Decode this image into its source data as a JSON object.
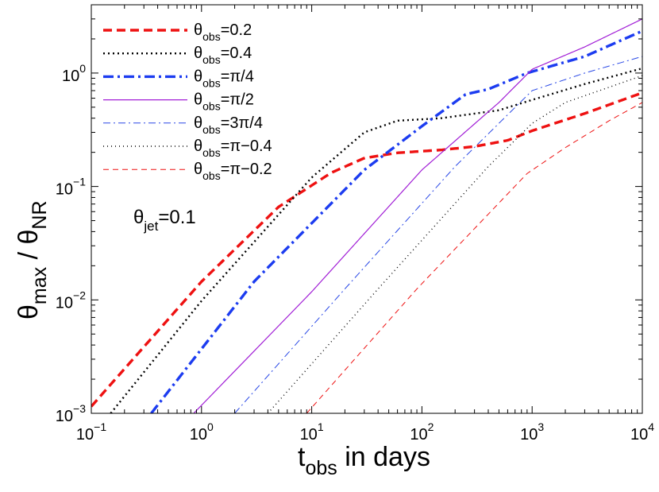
{
  "chart_data": {
    "type": "line",
    "scale": {
      "x": "log",
      "y": "log"
    },
    "xlim": [
      0.1,
      10000
    ],
    "ylim": [
      0.001,
      4
    ],
    "x_ticks": [
      {
        "value": 0.1,
        "base": "10",
        "exp": "−1"
      },
      {
        "value": 1,
        "base": "10",
        "exp": "0"
      },
      {
        "value": 10,
        "base": "10",
        "exp": "1"
      },
      {
        "value": 100,
        "base": "10",
        "exp": "2"
      },
      {
        "value": 1000,
        "base": "10",
        "exp": "3"
      },
      {
        "value": 10000,
        "base": "10",
        "exp": "4"
      }
    ],
    "y_ticks": [
      {
        "value": 0.001,
        "base": "10",
        "exp": "−3"
      },
      {
        "value": 0.01,
        "base": "10",
        "exp": "−2"
      },
      {
        "value": 0.1,
        "base": "10",
        "exp": "−1"
      },
      {
        "value": 1,
        "base": "10",
        "exp": "0"
      }
    ],
    "xlabel": {
      "main": "t",
      "sub": "obs",
      "rest": " in days"
    },
    "ylabel": {
      "main1": "θ",
      "sub1": "max",
      "sep": " / ",
      "main2": "θ",
      "sub2": "NR"
    },
    "annotation": {
      "main": "θ",
      "sub": "jet",
      "rest": "=0.1"
    },
    "legend_position": "top-left",
    "series": [
      {
        "id": "s1",
        "name_main": "θ",
        "name_sub": "obs",
        "name_rest": "=0.2",
        "color": "#ee1111",
        "width": 3.4,
        "dash": "11 6",
        "points": [
          [
            0.1,
            0.00115
          ],
          [
            1,
            0.0145
          ],
          [
            5,
            0.066
          ],
          [
            15,
            0.132
          ],
          [
            30,
            0.178
          ],
          [
            60,
            0.198
          ],
          [
            150,
            0.21
          ],
          [
            300,
            0.225
          ],
          [
            600,
            0.255
          ],
          [
            1000,
            0.31
          ],
          [
            3000,
            0.44
          ],
          [
            10000,
            0.67
          ]
        ]
      },
      {
        "id": "s2",
        "name_main": "θ",
        "name_sub": "obs",
        "name_rest": "=0.4",
        "color": "#000000",
        "width": 2.4,
        "dash": "2 4",
        "points": [
          [
            0.15,
            0.001
          ],
          [
            1,
            0.0098
          ],
          [
            10,
            0.12
          ],
          [
            30,
            0.3
          ],
          [
            60,
            0.38
          ],
          [
            150,
            0.4
          ],
          [
            500,
            0.47
          ],
          [
            1000,
            0.58
          ],
          [
            3000,
            0.8
          ],
          [
            10000,
            1.1
          ]
        ]
      },
      {
        "id": "s3",
        "name_main": "θ",
        "name_sub": "obs",
        "name_rest": "=π/4",
        "color": "#1c3cf0",
        "width": 3.4,
        "dash": "13 5 3 5",
        "points": [
          [
            0.35,
            0.001
          ],
          [
            3,
            0.0145
          ],
          [
            30,
            0.14
          ],
          [
            100,
            0.34
          ],
          [
            250,
            0.65
          ],
          [
            400,
            0.72
          ],
          [
            900,
            1.0
          ],
          [
            3000,
            1.4
          ],
          [
            10000,
            2.35
          ]
        ]
      },
      {
        "id": "s4",
        "name_main": "θ",
        "name_sub": "obs",
        "name_rest": "=π/2",
        "color": "#a11ed6",
        "width": 1.2,
        "dash": "",
        "points": [
          [
            0.85,
            0.001
          ],
          [
            10,
            0.0118
          ],
          [
            100,
            0.14
          ],
          [
            500,
            0.55
          ],
          [
            1000,
            1.08
          ],
          [
            3000,
            1.7
          ],
          [
            10000,
            3.0
          ]
        ]
      },
      {
        "id": "s5",
        "name_main": "θ",
        "name_sub": "obs",
        "name_rest": "=3π/4",
        "color": "#2847e6",
        "width": 1.0,
        "dash": "9 4 2 4",
        "points": [
          [
            2,
            0.001
          ],
          [
            20,
            0.0125
          ],
          [
            200,
            0.15
          ],
          [
            1000,
            0.7
          ],
          [
            3000,
            1.0
          ],
          [
            10000,
            1.4
          ]
        ]
      },
      {
        "id": "s6",
        "name_main": "θ",
        "name_sub": "obs",
        "name_rest": "=π−0.4",
        "color": "#000000",
        "width": 1.4,
        "dash": "1 4",
        "points": [
          [
            4,
            0.001
          ],
          [
            40,
            0.0125
          ],
          [
            400,
            0.15
          ],
          [
            1000,
            0.36
          ],
          [
            2000,
            0.55
          ],
          [
            5000,
            0.75
          ],
          [
            10000,
            0.95
          ]
        ]
      },
      {
        "id": "s7",
        "name_main": "θ",
        "name_sub": "obs",
        "name_rest": "=π−0.2",
        "color": "#ee1111",
        "width": 1.0,
        "dash": "7 5",
        "points": [
          [
            9,
            0.001
          ],
          [
            90,
            0.0125
          ],
          [
            900,
            0.13
          ],
          [
            2000,
            0.22
          ],
          [
            5000,
            0.38
          ],
          [
            10000,
            0.55
          ]
        ]
      }
    ]
  }
}
